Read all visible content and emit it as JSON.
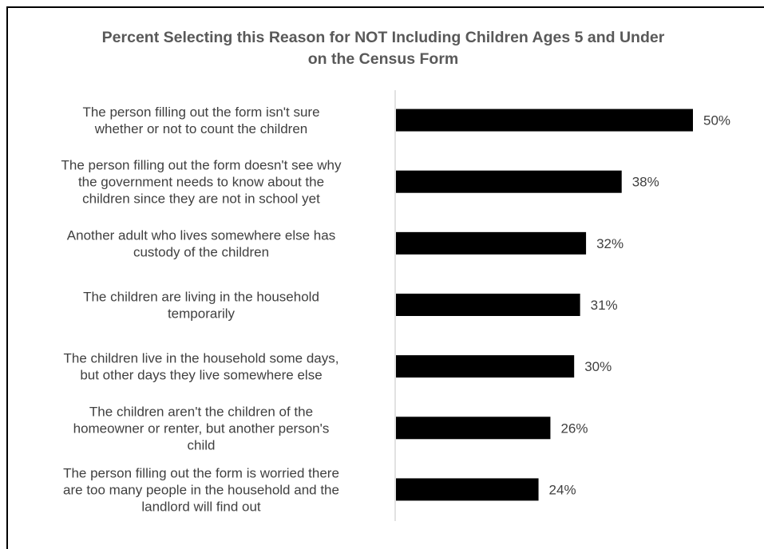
{
  "chart_data": {
    "type": "bar",
    "orientation": "horizontal",
    "title": "Percent Selecting this Reason for NOT Including Children Ages 5 and Under on the Census Form",
    "categories": [
      [
        "The person filling out the form isn't sure",
        "whether or not to count the children"
      ],
      [
        "The person filling out the form doesn't see why",
        "the government needs to know about the",
        "children since they are not in school yet"
      ],
      [
        "Another adult who lives somewhere else has",
        "custody of the children"
      ],
      [
        "The children are living in the household",
        "temporarily"
      ],
      [
        "The children live in the household some days,",
        "but other days they live somewhere else"
      ],
      [
        "The children aren't the children of the",
        "homeowner or renter, but another person's",
        "child"
      ],
      [
        "The person filling out the form is worried there",
        "are too many people in the household and the",
        "landlord will find out"
      ]
    ],
    "values": [
      50,
      38,
      32,
      31,
      30,
      26,
      24
    ],
    "value_labels": [
      "50%",
      "38%",
      "32%",
      "31%",
      "30%",
      "26%",
      "24%"
    ],
    "xlim": [
      0,
      50
    ],
    "bar_color": "#000000",
    "axis_color": "#d9d9d9",
    "grid": false,
    "legend": "none"
  }
}
